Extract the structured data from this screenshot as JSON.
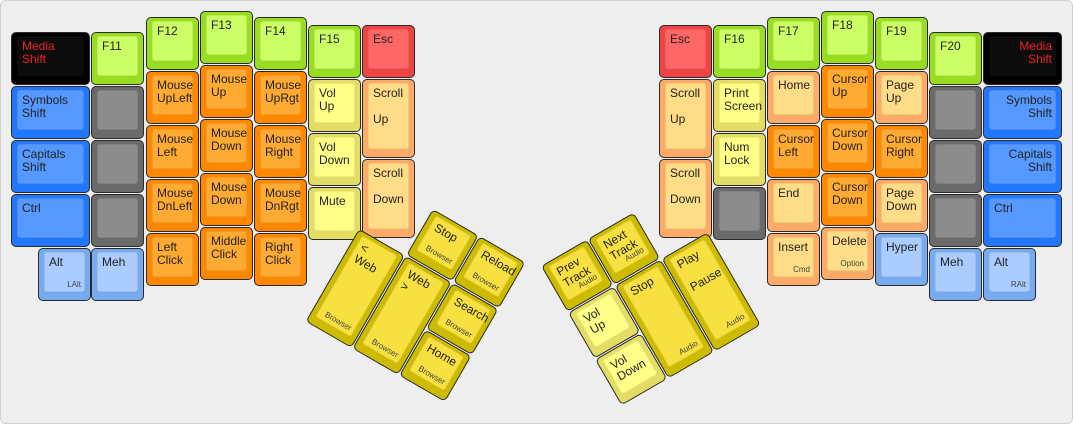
{
  "palette": {
    "lime": [
      "#99dd22",
      "#ccff66"
    ],
    "orange": [
      "#ff8800",
      "#ffaa33"
    ],
    "peach": [
      "#ffaa66",
      "#ffdd88"
    ],
    "paleyellow": [
      "#e3dd66",
      "#ffff88"
    ],
    "yellow": [
      "#ccbb00",
      "#f8e040"
    ],
    "blue": [
      "#2277ff",
      "#5599ff"
    ],
    "lightblue": [
      "#77aaee",
      "#aaccff"
    ],
    "gray": [
      "#6a6a6a",
      "#8c8c8c"
    ],
    "black": [
      "#000000",
      "#0c0c0c"
    ],
    "red": [
      "#ee4444",
      "#ff6666"
    ],
    "shift_text": "#ee2222"
  },
  "left_main": [
    {
      "label": "Media\nShift",
      "color": "black",
      "text": "red"
    },
    {
      "label": "Symbols\nShift",
      "color": "blue"
    },
    {
      "label": "Capitals\nShift",
      "color": "blue"
    },
    {
      "label": "Ctrl",
      "color": "blue"
    },
    {
      "label": "Alt",
      "sub": "LAlt",
      "color": "lightblue"
    },
    {
      "label": "F11",
      "color": "lime"
    },
    {
      "label": "",
      "color": "gray"
    },
    {
      "label": "",
      "color": "gray"
    },
    {
      "label": "",
      "color": "gray"
    },
    {
      "label": "Meh",
      "color": "lightblue"
    },
    {
      "label": "F12",
      "color": "lime"
    },
    {
      "label": "Mouse\nUpLeft",
      "color": "orange"
    },
    {
      "label": "Mouse\nLeft",
      "color": "orange"
    },
    {
      "label": "Mouse\nDnLeft",
      "color": "orange"
    },
    {
      "label": "Left\nClick",
      "color": "orange"
    },
    {
      "label": "F13",
      "color": "lime"
    },
    {
      "label": "Mouse\nUp",
      "color": "orange"
    },
    {
      "label": "Mouse\nDown",
      "color": "orange"
    },
    {
      "label": "Mouse\nDown",
      "color": "orange"
    },
    {
      "label": "Middle\nClick",
      "color": "orange"
    },
    {
      "label": "F14",
      "color": "lime"
    },
    {
      "label": "Mouse\nUpRgt",
      "color": "orange"
    },
    {
      "label": "Mouse\nRight",
      "color": "orange"
    },
    {
      "label": "Mouse\nDnRgt",
      "color": "orange"
    },
    {
      "label": "Right\nClick",
      "color": "orange"
    },
    {
      "label": "F15",
      "color": "lime"
    },
    {
      "label": "Vol\nUp",
      "color": "paleyellow"
    },
    {
      "label": "Vol\nDown",
      "color": "paleyellow"
    },
    {
      "label": "Mute",
      "color": "paleyellow"
    },
    {
      "label": "Esc",
      "color": "red"
    },
    {
      "label": "Scroll\n\nUp",
      "color": "peach"
    },
    {
      "label": "Scroll\n\nDown",
      "color": "peach"
    }
  ],
  "right_main": [
    {
      "label": "Esc",
      "color": "red"
    },
    {
      "label": "Scroll\n\nUp",
      "color": "peach"
    },
    {
      "label": "Scroll\n\nDown",
      "color": "peach"
    },
    {
      "label": "F16",
      "color": "lime"
    },
    {
      "label": "Print\nScreen",
      "color": "paleyellow"
    },
    {
      "label": "Num\nLock",
      "color": "paleyellow"
    },
    {
      "label": "",
      "color": "gray"
    },
    {
      "label": "F17",
      "color": "lime"
    },
    {
      "label": "Home",
      "color": "peach"
    },
    {
      "label": "Cursor\nLeft",
      "color": "orange"
    },
    {
      "label": "End",
      "color": "peach"
    },
    {
      "label": "Insert",
      "sub": "Cmd",
      "color": "peach"
    },
    {
      "label": "F18",
      "color": "lime"
    },
    {
      "label": "Cursor\nUp",
      "color": "orange"
    },
    {
      "label": "Cursor\nDown",
      "color": "orange"
    },
    {
      "label": "Cursor\nDown",
      "color": "orange"
    },
    {
      "label": "Delete",
      "sub": "Option",
      "color": "peach"
    },
    {
      "label": "F19",
      "color": "lime"
    },
    {
      "label": "Page\nUp",
      "color": "peach"
    },
    {
      "label": "Cursor\nRight",
      "color": "orange"
    },
    {
      "label": "Page\nDown",
      "color": "peach"
    },
    {
      "label": "Hyper",
      "color": "lightblue"
    },
    {
      "label": "F20",
      "color": "lime"
    },
    {
      "label": "",
      "color": "gray"
    },
    {
      "label": "",
      "color": "gray"
    },
    {
      "label": "",
      "color": "gray"
    },
    {
      "label": "Meh",
      "color": "lightblue"
    },
    {
      "label": "Media\nShift",
      "color": "black",
      "text": "red",
      "align": "right"
    },
    {
      "label": "Symbols\nShift",
      "color": "blue",
      "align": "right"
    },
    {
      "label": "Capitals\nShift",
      "color": "blue",
      "align": "right"
    },
    {
      "label": "Ctrl",
      "color": "blue"
    },
    {
      "label": "Alt",
      "sub": "RAlt",
      "color": "lightblue"
    }
  ],
  "left_thumb": [
    {
      "label": "Stop",
      "sub": "Browser",
      "color": "yellow"
    },
    {
      "label": "Reload",
      "sub": "Browser",
      "color": "yellow"
    },
    {
      "label": "< Web",
      "sub": "Browser",
      "color": "yellow"
    },
    {
      "label": "Web >",
      "sub": "Browser",
      "color": "yellow"
    },
    {
      "label": "Search",
      "sub": "Browser",
      "color": "yellow"
    },
    {
      "label": "Home",
      "sub": "Browser",
      "color": "yellow"
    }
  ],
  "right_thumb": [
    {
      "label": "Prev\nTrack",
      "sub": "Audio",
      "color": "yellow"
    },
    {
      "label": "Next\nTrack",
      "sub": "Audio",
      "color": "yellow"
    },
    {
      "label": "Vol\nUp",
      "color": "paleyellow"
    },
    {
      "label": "Vol\nDown",
      "color": "paleyellow"
    },
    {
      "label": "Stop",
      "sub": "Audio",
      "color": "yellow"
    },
    {
      "label": "Play\n\nPause",
      "sub": "Audio",
      "color": "yellow"
    }
  ]
}
